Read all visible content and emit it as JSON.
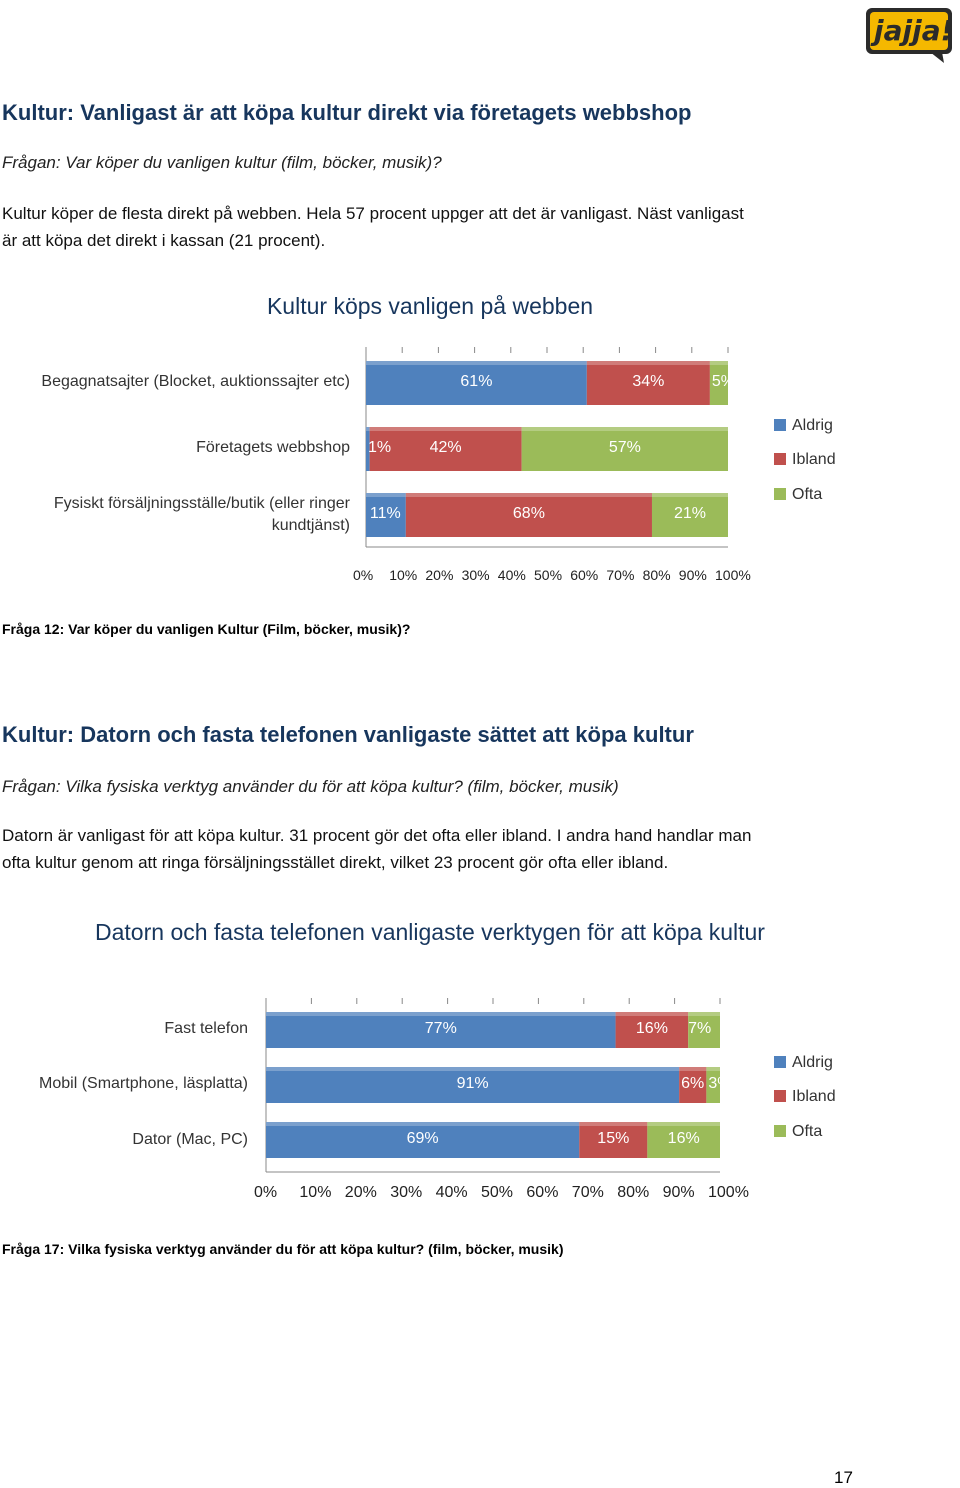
{
  "logo": {
    "text": "jajja!",
    "colors": {
      "frame": "#2b2b2b",
      "fill": "#f5b800"
    }
  },
  "section1": {
    "heading": "Kultur: Vanligast är att köpa kultur direkt via företagets webbshop",
    "question": "Frågan: Var köper du vanligen kultur (film, böcker, musik)?",
    "paragraph_lines": [
      "Kultur köper de flesta direkt på webben. Hela 57 procent uppger att det är vanligast. Näst vanligast",
      "är att köpa det direkt i kassan (21 procent)."
    ],
    "caption": "Fråga 12: Var köper du vanligen Kultur (Film, böcker, musik)?"
  },
  "section2": {
    "heading": "Kultur: Datorn och fasta telefonen vanligaste sättet att köpa kultur",
    "question": "Frågan: Vilka fysiska verktyg använder du för att köpa kultur? (film, böcker, musik)",
    "paragraph_lines": [
      "Datorn är vanligast för att köpa kultur. 31 procent gör det ofta eller ibland. I andra hand handlar man",
      "ofta kultur genom att ringa försäljningsstället direkt, vilket 23 procent gör ofta eller ibland."
    ],
    "caption": "Fråga 17: Vilka fysiska verktyg använder du för att köpa kultur? (film, böcker, musik)"
  },
  "page_number": "17",
  "chart_data": [
    {
      "type": "bar",
      "stacked": true,
      "orientation": "horizontal",
      "title": "Kultur köps vanligen på webben",
      "categories": [
        "Begagnatsajter (Blocket, auktionssajter etc)",
        "Företagets webbshop",
        "Fysiskt försäljningsställe/butik (eller ringer kundtjänst)"
      ],
      "series": [
        {
          "name": "Aldrig",
          "color": "#4f81bd",
          "values": [
            61,
            1,
            11
          ],
          "labels": [
            "61%",
            "1%",
            "11%"
          ]
        },
        {
          "name": "Ibland",
          "color": "#c0504d",
          "values": [
            34,
            42,
            68
          ],
          "labels": [
            "34%",
            "42%",
            "68%"
          ]
        },
        {
          "name": "Ofta",
          "color": "#9bbb59",
          "values": [
            5,
            57,
            21
          ],
          "labels": [
            "5%",
            "57%",
            "21%"
          ]
        }
      ],
      "xlim": [
        0,
        100
      ],
      "ticks": [
        "0%",
        "10%",
        "20%",
        "30%",
        "40%",
        "50%",
        "60%",
        "70%",
        "80%",
        "90%",
        "100%"
      ],
      "legend": "right",
      "grid": false
    },
    {
      "type": "bar",
      "stacked": true,
      "orientation": "horizontal",
      "title": "Datorn och fasta telefonen vanligaste verktygen för att köpa kultur",
      "categories": [
        "Fast telefon",
        "Mobil (Smartphone,  läsplatta)",
        "Dator (Mac, PC)"
      ],
      "series": [
        {
          "name": "Aldrig",
          "color": "#4f81bd",
          "values": [
            77,
            91,
            69
          ],
          "labels": [
            "77%",
            "91%",
            "69%"
          ]
        },
        {
          "name": "Ibland",
          "color": "#c0504d",
          "values": [
            16,
            6,
            15
          ],
          "labels": [
            "16%",
            "6%",
            "15%"
          ]
        },
        {
          "name": "Ofta",
          "color": "#9bbb59",
          "values": [
            7,
            3,
            16
          ],
          "labels": [
            "7%",
            "3%",
            "16%"
          ]
        }
      ],
      "xlim": [
        0,
        100
      ],
      "ticks": [
        "0%",
        "10%",
        "20%",
        "30%",
        "40%",
        "50%",
        "60%",
        "70%",
        "80%",
        "90%",
        "100%"
      ],
      "legend": "right",
      "grid": false
    }
  ]
}
